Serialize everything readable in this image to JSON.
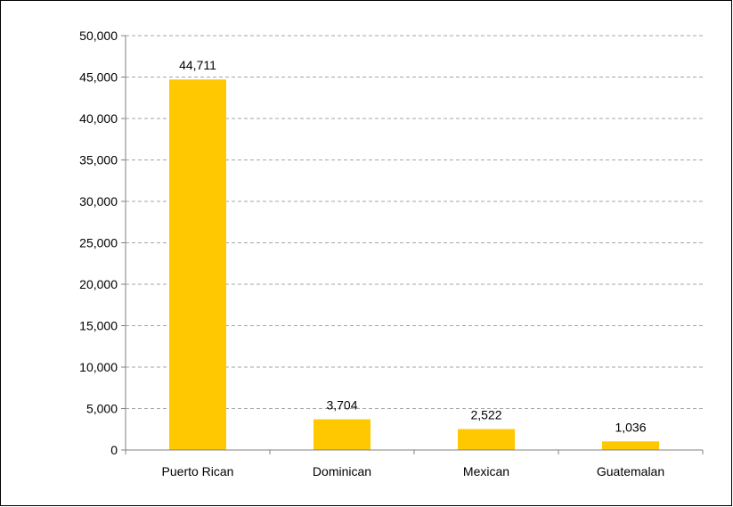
{
  "chart_data": {
    "type": "bar",
    "title": "",
    "xlabel": "",
    "ylabel": "",
    "categories": [
      "Puerto Rican",
      "Dominican",
      "Mexican",
      "Guatemalan"
    ],
    "values": [
      44711,
      3704,
      2522,
      1036
    ],
    "value_labels": [
      "44,711",
      "3,704",
      "2,522",
      "1,036"
    ],
    "ylim": [
      0,
      50000
    ],
    "yticks": [
      0,
      5000,
      10000,
      15000,
      20000,
      25000,
      30000,
      35000,
      40000,
      45000,
      50000
    ],
    "ytick_labels": [
      "0",
      "5,000",
      "10,000",
      "15,000",
      "20,000",
      "25,000",
      "30,000",
      "35,000",
      "40,000",
      "45,000",
      "50,000"
    ],
    "grid": "horizontal dashed",
    "legend": "none",
    "colors": {
      "bar": "#FFC800",
      "gridline": "#A6A6A6",
      "axis": "#808080",
      "text": "#000000"
    }
  }
}
